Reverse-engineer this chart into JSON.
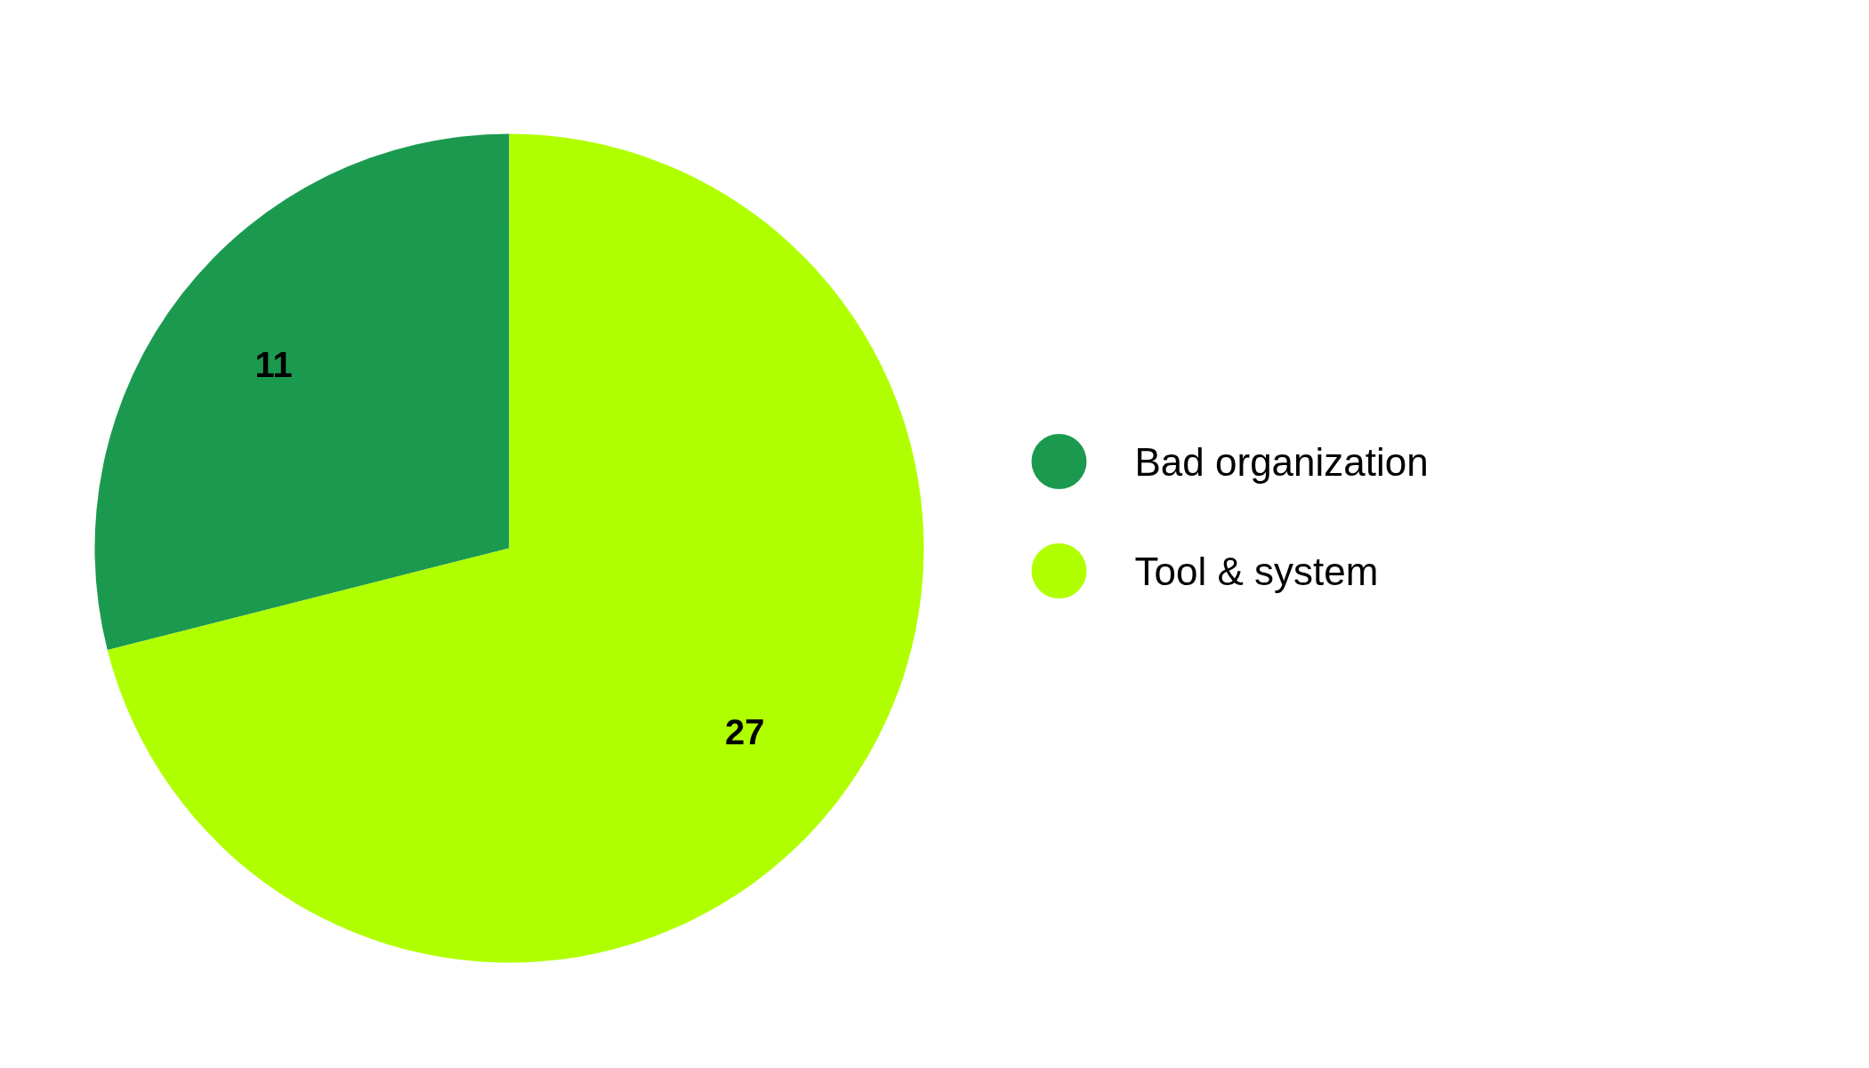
{
  "chart_data": {
    "type": "pie",
    "categories": [
      "Bad organization",
      "Tool & system"
    ],
    "values": [
      11,
      27
    ],
    "colors": [
      "#1b9a4f",
      "#b0ff00"
    ],
    "data_labels": true,
    "legend": "right"
  }
}
